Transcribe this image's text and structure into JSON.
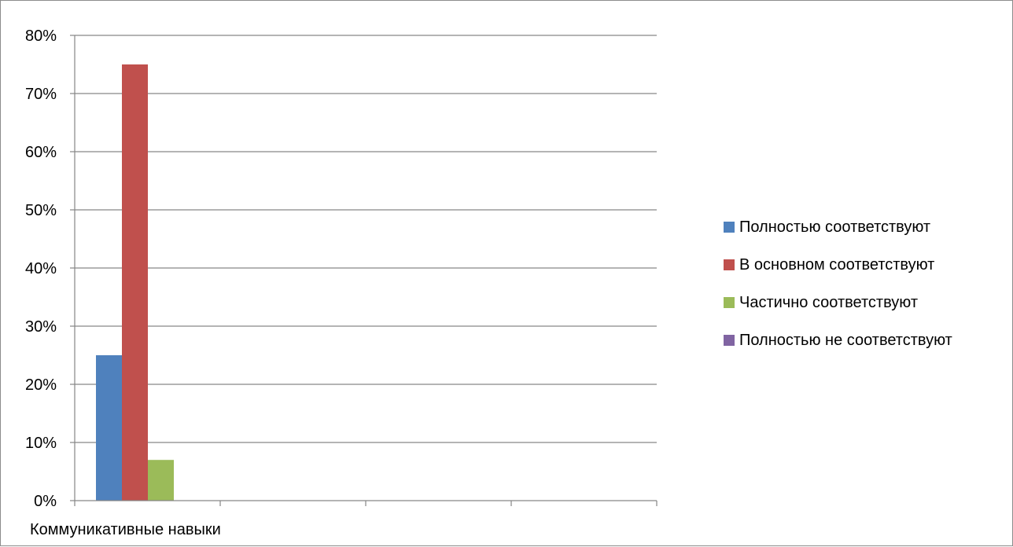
{
  "chart_data": {
    "type": "bar",
    "categories": [
      "Коммуникативные навыки"
    ],
    "series": [
      {
        "name": "Полностью соответствуют",
        "values": [
          25
        ],
        "color": "#4F81BD"
      },
      {
        "name": "В основном соответствуют",
        "values": [
          75
        ],
        "color": "#C0504D"
      },
      {
        "name": "Частично соответствуют",
        "values": [
          7
        ],
        "color": "#9BBB59"
      },
      {
        "name": "Полностью не соответствуют",
        "values": [
          0
        ],
        "color": "#8064A2"
      }
    ],
    "y_tick_labels": [
      "0%",
      "10%",
      "20%",
      "30%",
      "40%",
      "50%",
      "60%",
      "70%",
      "80%"
    ],
    "ylim": [
      0,
      80
    ],
    "grid": true,
    "legend_position": "right",
    "title": "",
    "xlabel": "",
    "ylabel": ""
  }
}
